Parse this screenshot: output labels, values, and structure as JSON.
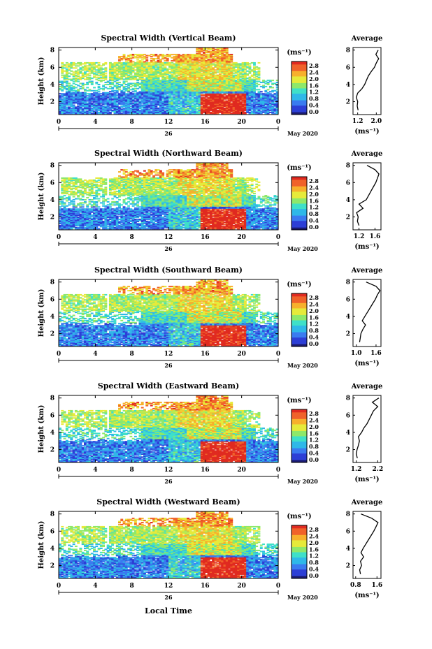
{
  "figure": {
    "xlabel": "Local Time",
    "date_label": "May 2020",
    "day_label": "26",
    "ylabel": "Height (km)",
    "unit_label": "(ms⁻¹)",
    "avg_title": "Average",
    "avg_xlabel": "(ms⁻¹)",
    "colorbar_ticks": [
      "0.0",
      "0.4",
      "0.8",
      "1.2",
      "1.6",
      "2.0",
      "2.4",
      "2.8"
    ],
    "colorbar_colors": [
      "#1a1a6e",
      "#2d3fd6",
      "#3a7bf0",
      "#2fb8e8",
      "#3fe0c8",
      "#8ee86a",
      "#e6ea3a",
      "#f7b02c",
      "#f0622a",
      "#e02a20"
    ]
  },
  "chart_data": [
    {
      "type": "heatmap",
      "title": "Spectral Width (Vertical Beam)",
      "x_ticks": [
        "0",
        "4",
        "8",
        "12",
        "16",
        "20",
        "0"
      ],
      "xlim": [
        0,
        24
      ],
      "ylim": [
        0.5,
        8.3
      ],
      "y_ticks": [
        "2",
        "4",
        "6",
        "8"
      ],
      "colorbar_range": [
        0.0,
        2.8
      ],
      "average_profile": {
        "x_ticks": [
          "1.2",
          "2.0"
        ],
        "xlim": [
          1.0,
          2.2
        ],
        "ylim": [
          0.5,
          8.3
        ],
        "y_ticks": [
          "2",
          "4",
          "6",
          "8"
        ],
        "height_km": [
          1.0,
          1.5,
          2.0,
          2.5,
          3.0,
          3.5,
          4.0,
          4.5,
          5.0,
          5.5,
          6.0,
          6.5,
          7.0,
          7.5,
          8.0
        ],
        "width": [
          1.22,
          1.18,
          1.2,
          1.14,
          1.2,
          1.38,
          1.5,
          1.58,
          1.66,
          1.78,
          1.92,
          2.0,
          2.1,
          1.98,
          2.08
        ]
      }
    },
    {
      "type": "heatmap",
      "title": "Spectral Width (Northward Beam)",
      "x_ticks": [
        "0",
        "4",
        "8",
        "12",
        "16",
        "20",
        "0"
      ],
      "xlim": [
        0,
        24
      ],
      "ylim": [
        0.5,
        8.3
      ],
      "y_ticks": [
        "2",
        "4",
        "6",
        "8"
      ],
      "colorbar_range": [
        0.0,
        2.8
      ],
      "average_profile": {
        "x_ticks": [
          "1.2",
          "1.6"
        ],
        "xlim": [
          1.05,
          1.75
        ],
        "ylim": [
          0.5,
          8.3
        ],
        "y_ticks": [
          "2",
          "4",
          "6",
          "8"
        ],
        "height_km": [
          1.0,
          1.5,
          2.0,
          2.5,
          3.0,
          3.5,
          4.0,
          4.5,
          5.0,
          5.5,
          6.0,
          6.5,
          7.0,
          7.5,
          8.0
        ],
        "width": [
          1.2,
          1.16,
          1.18,
          1.14,
          1.3,
          1.2,
          1.38,
          1.44,
          1.5,
          1.56,
          1.62,
          1.66,
          1.7,
          1.6,
          1.4
        ]
      }
    },
    {
      "type": "heatmap",
      "title": "Spectral Width (Southward Beam)",
      "x_ticks": [
        "0",
        "4",
        "8",
        "12",
        "16",
        "20",
        "0"
      ],
      "xlim": [
        0,
        24
      ],
      "ylim": [
        0.5,
        8.3
      ],
      "y_ticks": [
        "2",
        "4",
        "6",
        "8"
      ],
      "colorbar_range": [
        0.0,
        2.8
      ],
      "average_profile": {
        "x_ticks": [
          "1.0",
          "1.6"
        ],
        "xlim": [
          0.9,
          1.75
        ],
        "ylim": [
          0.5,
          8.3
        ],
        "y_ticks": [
          "2",
          "4",
          "6",
          "8"
        ],
        "height_km": [
          1.0,
          1.5,
          2.0,
          2.5,
          3.0,
          3.5,
          4.0,
          4.5,
          5.0,
          5.5,
          6.0,
          6.5,
          7.0,
          7.5,
          8.0
        ],
        "width": [
          1.1,
          1.12,
          1.14,
          1.2,
          1.28,
          1.18,
          1.26,
          1.34,
          1.42,
          1.5,
          1.58,
          1.64,
          1.72,
          1.6,
          1.3
        ]
      }
    },
    {
      "type": "heatmap",
      "title": "Spectral Width (Eastward Beam)",
      "x_ticks": [
        "0",
        "4",
        "8",
        "12",
        "16",
        "20",
        "0"
      ],
      "xlim": [
        0,
        24
      ],
      "ylim": [
        0.5,
        8.3
      ],
      "y_ticks": [
        "2",
        "4",
        "6",
        "8"
      ],
      "colorbar_range": [
        0.0,
        2.8
      ],
      "average_profile": {
        "x_ticks": [
          "1.2",
          "2.2"
        ],
        "xlim": [
          1.05,
          2.35
        ],
        "ylim": [
          0.5,
          8.3
        ],
        "y_ticks": [
          "2",
          "4",
          "6",
          "8"
        ],
        "height_km": [
          1.0,
          1.5,
          2.0,
          2.5,
          3.0,
          3.5,
          4.0,
          4.5,
          5.0,
          5.5,
          6.0,
          6.5,
          7.0,
          7.5,
          8.0
        ],
        "width": [
          1.25,
          1.2,
          1.24,
          1.3,
          1.35,
          1.3,
          1.45,
          1.55,
          1.7,
          1.8,
          1.9,
          2.0,
          2.2,
          1.95,
          2.25
        ]
      }
    },
    {
      "type": "heatmap",
      "title": "Spectral Width (Westward Beam)",
      "x_ticks": [
        "0",
        "4",
        "8",
        "12",
        "16",
        "20",
        "0"
      ],
      "xlim": [
        0,
        24
      ],
      "ylim": [
        0.5,
        8.3
      ],
      "y_ticks": [
        "2",
        "4",
        "6",
        "8"
      ],
      "colorbar_range": [
        0.0,
        2.8
      ],
      "average_profile": {
        "x_ticks": [
          "0.8",
          "1.6"
        ],
        "xlim": [
          0.7,
          1.75
        ],
        "ylim": [
          0.5,
          8.3
        ],
        "y_ticks": [
          "2",
          "4",
          "6",
          "8"
        ],
        "height_km": [
          1.0,
          1.5,
          2.0,
          2.5,
          3.0,
          3.5,
          4.0,
          4.5,
          5.0,
          5.5,
          6.0,
          6.5,
          7.0,
          7.5,
          8.0
        ],
        "width": [
          0.98,
          0.95,
          1.02,
          0.98,
          1.1,
          1.0,
          1.08,
          1.18,
          1.28,
          1.38,
          1.48,
          1.56,
          1.64,
          1.4,
          1.0
        ]
      }
    }
  ]
}
